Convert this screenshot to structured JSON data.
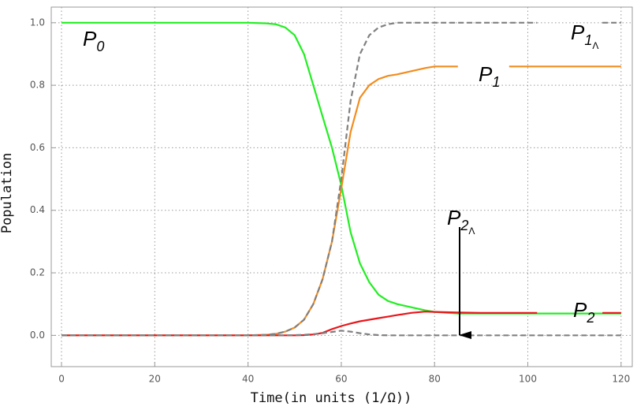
{
  "chart_data": {
    "type": "line",
    "xlabel": "Time(in units (1/Ω))",
    "ylabel": "Population",
    "x": [
      0,
      12,
      40,
      44,
      46,
      48,
      50,
      52,
      54,
      56,
      58,
      60,
      62,
      64,
      66,
      68,
      70,
      72,
      75,
      78,
      80,
      85,
      90,
      96,
      102,
      107,
      109,
      116,
      120
    ],
    "series": [
      {
        "color": "#22ee22",
        "dash": false,
        "values": [
          1,
          1,
          1,
          0.998,
          0.995,
          0.985,
          0.96,
          0.9,
          0.8,
          0.7,
          0.6,
          0.48,
          0.33,
          0.23,
          0.17,
          0.13,
          0.11,
          0.1,
          0.09,
          0.08,
          0.075,
          0.07,
          0.07,
          0.07,
          0.07,
          0.07,
          0.07,
          0.07,
          0.07
        ]
      },
      {
        "color": "#f28c1e",
        "dash": false,
        "values": [
          0,
          0,
          0,
          0.002,
          0.005,
          0.012,
          0.025,
          0.05,
          0.1,
          0.18,
          0.3,
          0.47,
          0.65,
          0.76,
          0.8,
          0.82,
          0.83,
          0.835,
          0.845,
          0.855,
          0.86,
          0.86,
          null,
          0.86,
          0.86,
          0.86,
          0.86,
          0.86,
          0.86
        ]
      },
      {
        "color": "#e8161b",
        "dash": false,
        "values": [
          0,
          0,
          0,
          0,
          0,
          0,
          0,
          0.001,
          0.003,
          0.008,
          0.02,
          0.03,
          0.038,
          0.045,
          0.05,
          0.055,
          0.06,
          0.065,
          0.072,
          0.076,
          0.075,
          0.073,
          0.072,
          0.072,
          0.072,
          null,
          null,
          0.072,
          0.072
        ]
      },
      {
        "color": "#808080",
        "dash": true,
        "values": [
          0,
          0,
          0,
          0.002,
          0.005,
          0.012,
          0.025,
          0.05,
          0.1,
          0.18,
          0.3,
          0.5,
          0.75,
          0.9,
          0.96,
          0.985,
          0.995,
          1,
          1,
          1,
          1,
          1,
          1,
          1,
          1,
          null,
          null,
          1,
          1
        ]
      },
      {
        "color": "#808080",
        "dash": true,
        "values": [
          0,
          0,
          0,
          0,
          0,
          0,
          0.001,
          0.002,
          0.004,
          0.007,
          0.011,
          0.015,
          0.012,
          0.007,
          0.003,
          0.001,
          0,
          0,
          0,
          0,
          0,
          0,
          0,
          0,
          0,
          0,
          0,
          0,
          0
        ]
      }
    ],
    "annotations": [
      {
        "text": "P",
        "sub": "0"
      },
      {
        "text": "P",
        "sub": "1"
      },
      {
        "text": "P",
        "sub": "2"
      },
      {
        "text": "P",
        "sub": "1",
        "subsub": "Λ"
      },
      {
        "text": "P",
        "sub": "2",
        "subsub": "Λ"
      }
    ],
    "xlim": [
      -2.2,
      122.4
    ],
    "ylim": [
      -0.1,
      1.05
    ],
    "xticks": [
      0,
      20,
      40,
      60,
      80,
      100,
      120
    ],
    "yticks": [
      {
        "value": 0,
        "label": "0.0"
      },
      0.2,
      0.4,
      0.6,
      0.8,
      {
        "value": 1,
        "label": "1.0"
      }
    ],
    "grid": true
  }
}
